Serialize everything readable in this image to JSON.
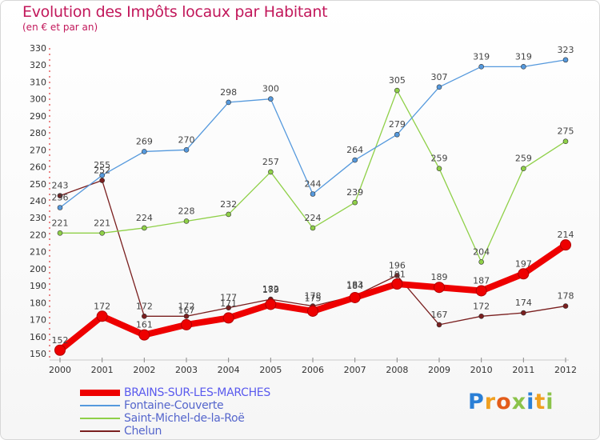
{
  "title": "Evolution des Impôts locaux par Habitant",
  "subtitle": "(en € et par an)",
  "logo": {
    "letters": [
      "P",
      "r",
      "o",
      "x",
      "i",
      "t",
      "i"
    ],
    "colors": [
      "#2a7fd6",
      "#f0a020",
      "#e35c1a",
      "#8bc34a",
      "#2a7fd6",
      "#f0a020",
      "#8bc34a"
    ]
  },
  "chart_data": {
    "type": "line",
    "x": [
      "2000",
      "2001",
      "2002",
      "2003",
      "2004",
      "2005",
      "2006",
      "2007",
      "2008",
      "2009",
      "2010",
      "2011",
      "2012"
    ],
    "ylim": [
      150,
      330
    ],
    "yticks": [
      150,
      160,
      170,
      180,
      190,
      200,
      210,
      220,
      230,
      240,
      250,
      260,
      270,
      280,
      290,
      300,
      310,
      320,
      330
    ],
    "grid": false,
    "legend_position": "bottom-left",
    "series": [
      {
        "name": "BRAINS-SUR-LES-MARCHES",
        "color": "#ee0000",
        "values": [
          152,
          172,
          161,
          167,
          171,
          179,
          175,
          183,
          191,
          189,
          187,
          197,
          214
        ],
        "labels": [
          "152",
          "172",
          "161",
          "",
          "",
          "",
          "",
          "",
          "",
          "189",
          "187",
          "197",
          "214"
        ]
      },
      {
        "name": "Fontaine-Couverte",
        "color": "#5599dd",
        "values": [
          236,
          255,
          269,
          270,
          298,
          300,
          244,
          264,
          279,
          307,
          319,
          319,
          323
        ],
        "labels": [
          "236",
          "255",
          "269",
          "270",
          "298",
          "300",
          "244",
          "264",
          "279",
          "307",
          "319",
          "319",
          "323"
        ]
      },
      {
        "name": "Saint-Michel-de-la-Roë",
        "color": "#8fd048",
        "values": [
          221,
          221,
          224,
          228,
          232,
          257,
          224,
          239,
          305,
          259,
          204,
          259,
          275
        ],
        "labels": [
          "221",
          "221",
          "224",
          "228",
          "232",
          "257",
          "224",
          "239",
          "305",
          "259",
          "204",
          "259",
          "275"
        ]
      },
      {
        "name": "Chelun",
        "color": "#7a1f1f",
        "values": [
          243,
          252,
          172,
          172,
          177,
          182,
          178,
          184,
          196,
          167,
          172,
          174,
          178
        ],
        "labels": [
          "243",
          "252",
          "172",
          "172",
          "177",
          "182",
          "178",
          "184",
          "196",
          "167",
          "172",
          "174",
          "178"
        ]
      }
    ],
    "overlap_labels": [
      {
        "text": "167",
        "x_index": 3,
        "y": 172
      },
      {
        "text": "171",
        "x_index": 4,
        "y": 176
      },
      {
        "text": "179",
        "x_index": 5,
        "y": 184
      },
      {
        "text": "175",
        "x_index": 6,
        "y": 179
      },
      {
        "text": "183",
        "x_index": 7,
        "y": 187
      },
      {
        "text": "191",
        "x_index": 8,
        "y": 193
      }
    ]
  }
}
